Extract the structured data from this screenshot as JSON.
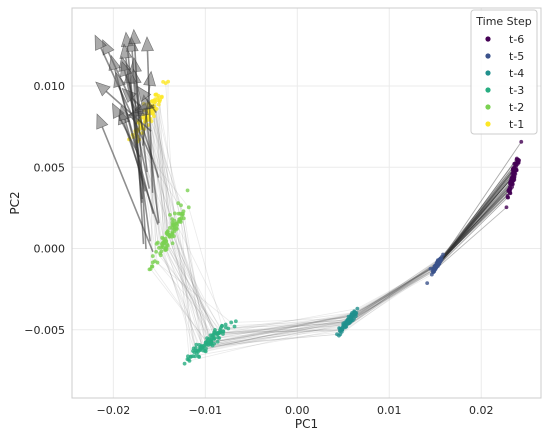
{
  "chart_data": {
    "type": "scatter",
    "title": "",
    "xlabel": "PC1",
    "ylabel": "PC2",
    "xlim": [
      -0.0245,
      0.0265
    ],
    "ylim": [
      -0.0092,
      0.0148
    ],
    "x_ticks": [
      -0.02,
      -0.01,
      0.0,
      0.01,
      0.02
    ],
    "x_tick_labels": [
      "−0.02",
      "−0.01",
      "0.00",
      "0.01",
      "0.02"
    ],
    "y_ticks": [
      -0.005,
      0.0,
      0.005,
      0.01
    ],
    "y_tick_labels": [
      "−0.005",
      "0.000",
      "0.005",
      "0.010"
    ],
    "grid": true,
    "legend": {
      "title": "Time Step",
      "placement": "top-right"
    },
    "series": [
      {
        "name": "t-6",
        "color": "#440154",
        "center": [
          0.0235,
          0.0045
        ],
        "spread": [
          0.0006,
          0.0013
        ],
        "orientation": "along-diagonal"
      },
      {
        "name": "t-5",
        "color": "#3b528b",
        "center": [
          0.0152,
          -0.001
        ],
        "spread": [
          0.0005,
          0.0005
        ],
        "orientation": "along-diagonal"
      },
      {
        "name": "t-4",
        "color": "#21908d",
        "center": [
          0.0055,
          -0.0045
        ],
        "spread": [
          0.0008,
          0.0006
        ],
        "orientation": "along-diagonal"
      },
      {
        "name": "t-3",
        "color": "#27ad81",
        "center": [
          -0.0095,
          -0.0057
        ],
        "spread": [
          0.002,
          0.001
        ],
        "orientation": "along-diagonal"
      },
      {
        "name": "t-2",
        "color": "#7ad151",
        "center": [
          -0.014,
          0.0008
        ],
        "spread": [
          0.0015,
          0.0017
        ],
        "orientation": "along-diagonal"
      },
      {
        "name": "t-1",
        "color": "#fde725",
        "center": [
          -0.016,
          0.0085
        ],
        "spread": [
          0.0018,
          0.0017
        ],
        "orientation": "along-diagonal"
      }
    ],
    "arrows": {
      "description": "trajectory arrows from t-1 points toward predicted positions",
      "color": "#333333",
      "tips_region": {
        "x": [
          -0.0225,
          -0.0155
        ],
        "y": [
          0.008,
          0.0135
        ]
      },
      "bases_region": {
        "x": [
          -0.0175,
          -0.015
        ],
        "y": [
          -0.001,
          0.009
        ]
      }
    }
  }
}
